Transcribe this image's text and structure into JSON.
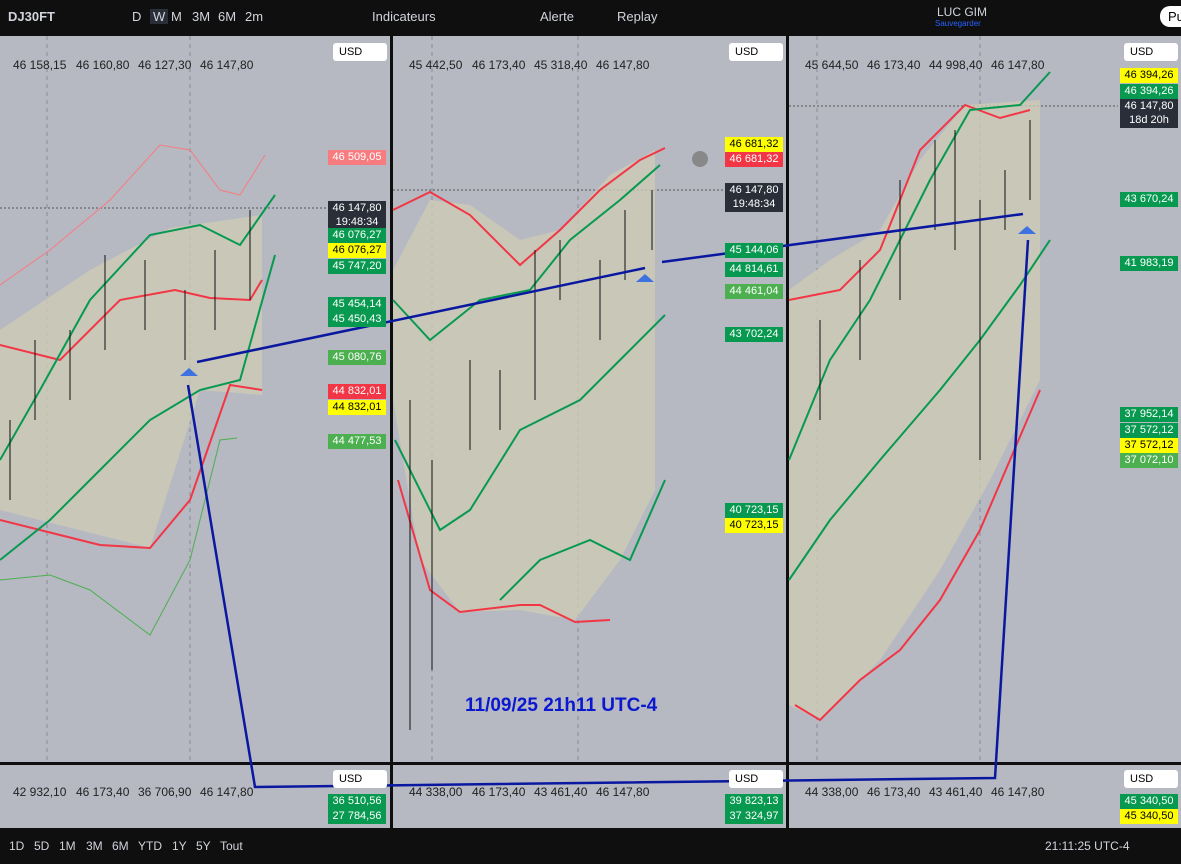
{
  "toolbar": {
    "symbol": "DJ30FT",
    "intervals": [
      "D",
      "W",
      "M",
      "3M",
      "6M",
      "2m"
    ],
    "indicators": "Indicateurs",
    "alert": "Alerte",
    "replay": "Replay",
    "user": "LUC GIM",
    "save_status": "Sauvegarder",
    "publish": "Pu"
  },
  "panels": [
    {
      "ohlc": [
        "46 158,15",
        "46 160,80",
        "46 127,30",
        "46 147,80"
      ],
      "currency": "USD",
      "price_labels": [
        {
          "text": "46 509,05",
          "color": "#f77c80"
        },
        {
          "text": "46 147,80",
          "sub": "19:48:34",
          "color": "#2a2e39"
        },
        {
          "text": "46 076,27",
          "color": "#089950"
        },
        {
          "text": "46 076,27",
          "color": "#ffff00"
        },
        {
          "text": "45 747,20",
          "color": "#089950"
        },
        {
          "text": "45 454,14",
          "color": "#089950"
        },
        {
          "text": "45 450,43",
          "color": "#089950"
        },
        {
          "text": "45 080,76",
          "color": "#4caf50"
        },
        {
          "text": "44 832,01",
          "color": "#f23645"
        },
        {
          "text": "44 832,01",
          "color": "#ffff00"
        },
        {
          "text": "44 477,53",
          "color": "#4caf50"
        }
      ]
    },
    {
      "ohlc": [
        "45 442,50",
        "46 173,40",
        "45 318,40",
        "46 147,80"
      ],
      "currency": "USD",
      "price_labels": [
        {
          "text": "46 681,32",
          "color": "#ffff00"
        },
        {
          "text": "46 681,32",
          "color": "#f23645"
        },
        {
          "text": "46 147,80",
          "sub": "19:48:34",
          "color": "#2a2e39"
        },
        {
          "text": "45 144,06",
          "color": "#089950"
        },
        {
          "text": "44 814,61",
          "color": "#089950"
        },
        {
          "text": "44 461,04",
          "color": "#4caf50"
        },
        {
          "text": "43 702,24",
          "color": "#089950"
        },
        {
          "text": "40 723,15",
          "color": "#089950"
        },
        {
          "text": "40 723,15",
          "color": "#ffff00"
        }
      ]
    },
    {
      "ohlc": [
        "45 644,50",
        "46 173,40",
        "44 998,40",
        "46 147,80"
      ],
      "currency": "USD",
      "price_labels": [
        {
          "text": "46 394,26",
          "color": "#ffff00"
        },
        {
          "text": "46 394,26",
          "color": "#089950"
        },
        {
          "text": "46 147,80",
          "sub": "18d 20h",
          "color": "#2a2e39"
        },
        {
          "text": "43 670,24",
          "color": "#089950"
        },
        {
          "text": "41 983,19",
          "color": "#089950"
        },
        {
          "text": "37 952,14",
          "color": "#089950"
        },
        {
          "text": "37 572,12",
          "color": "#089950"
        },
        {
          "text": "37 572,12",
          "color": "#ffff00"
        },
        {
          "text": "37 072,10",
          "color": "#4caf50"
        }
      ]
    }
  ],
  "mini_panels": [
    {
      "ohlc": [
        "42 932,10",
        "46 173,40",
        "36 706,90",
        "46 147,80"
      ],
      "currency": "USD",
      "price_labels": [
        {
          "text": "36 510,56",
          "color": "#089950"
        },
        {
          "text": "27 784,56",
          "color": "#089950"
        }
      ]
    },
    {
      "ohlc": [
        "44 338,00",
        "46 173,40",
        "43 461,40",
        "46 147,80"
      ],
      "currency": "USD",
      "price_labels": [
        {
          "text": "39 823,13",
          "color": "#089950"
        },
        {
          "text": "37 324,97",
          "color": "#089950"
        }
      ]
    },
    {
      "ohlc": [
        "44 338,00",
        "46 173,40",
        "43 461,40",
        "46 147,80"
      ],
      "currency": "USD",
      "price_labels": [
        {
          "text": "45 340,50",
          "color": "#089950"
        },
        {
          "text": "45 340,50",
          "color": "#ffff00"
        }
      ]
    }
  ],
  "annotation": "11/09/25 21h11 UTC-4",
  "bottom_bar": {
    "ranges": [
      "1D",
      "5D",
      "1M",
      "3M",
      "6M",
      "YTD",
      "1Y",
      "5Y",
      "Tout"
    ],
    "time": "21:11:25 UTC-4"
  }
}
